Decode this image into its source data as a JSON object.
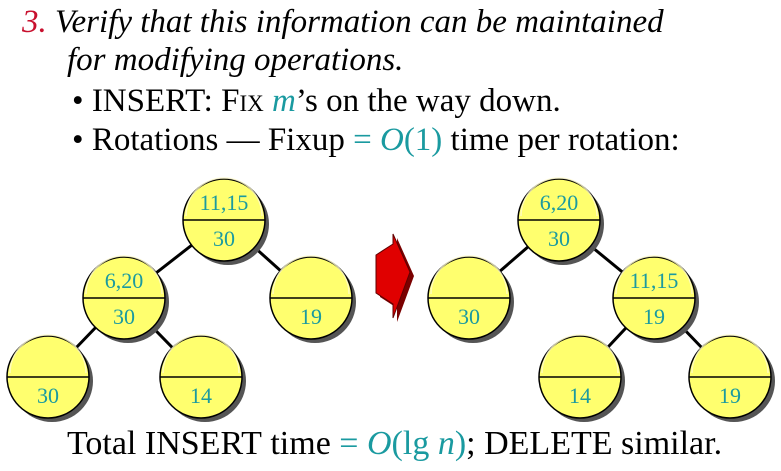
{
  "colors": {
    "accent": "#1a9aa0",
    "number": "#c8102e",
    "node_fill": "#ffff6e",
    "arrow": "#e00000"
  },
  "heading": {
    "number": "3.",
    "line1": "Verify that this information can be maintained",
    "line2": "for modifying operations."
  },
  "bullets": [
    {
      "lead": "INSERT: Fix ",
      "math": "m",
      "rest": "’s on the way down."
    },
    {
      "lead": "Rotations — Fixup ",
      "eq": "= ",
      "math_o": "O",
      "paren": "(1)",
      "rest": " time per rotation:"
    }
  ],
  "left_tree": {
    "root": {
      "top": "11,15",
      "bottom": "30"
    },
    "left": {
      "top": "6,20",
      "bottom": "30"
    },
    "right": {
      "top": "",
      "bottom": "19"
    },
    "ll": {
      "top": "",
      "bottom": "30"
    },
    "lr": {
      "top": "",
      "bottom": "14"
    }
  },
  "right_tree": {
    "root": {
      "top": "6,20",
      "bottom": "30"
    },
    "left": {
      "top": "",
      "bottom": "30"
    },
    "right": {
      "top": "11,15",
      "bottom": "19"
    },
    "rl": {
      "top": "",
      "bottom": "14"
    },
    "rr": {
      "top": "",
      "bottom": "19"
    }
  },
  "footer": {
    "a": "Total ",
    "b": "INSERT",
    "c": " time ",
    "d": "= ",
    "e": "O",
    "f": "(lg ",
    "g": "n",
    "h": ")",
    "i": "; ",
    "j": "DELETE",
    "k": " similar."
  }
}
